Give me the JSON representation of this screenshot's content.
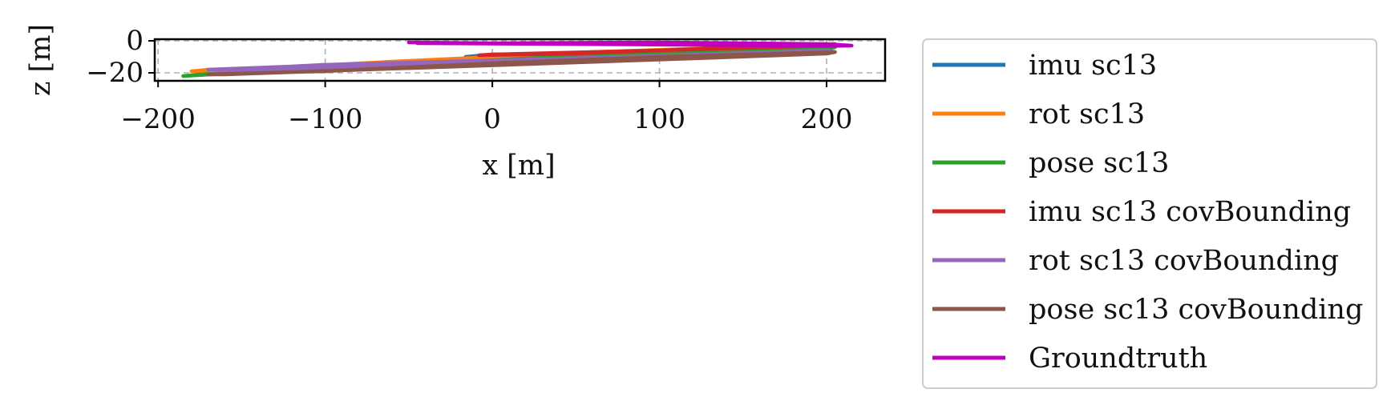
{
  "chart_data": {
    "type": "line",
    "xlabel": "x [m]",
    "ylabel": "z [m]",
    "xlim": [
      -202,
      235
    ],
    "ylim": [
      -25,
      1
    ],
    "xticks": [
      -200,
      -100,
      0,
      100,
      200
    ],
    "xtick_labels": [
      "−200",
      "−100",
      "0",
      "100",
      "200"
    ],
    "yticks": [
      0,
      -20
    ],
    "ytick_labels": [
      "0",
      "−20"
    ],
    "grid": true,
    "legend_position": "outside-right",
    "series": [
      {
        "name": "imu sc13",
        "color": "#1f77b4",
        "x": [
          -16,
          40,
          150,
          200,
          205,
          130,
          0,
          -16
        ],
        "z": [
          -10,
          -9.5,
          -6,
          -3,
          -4,
          -7,
          -8.5,
          -10
        ]
      },
      {
        "name": "rot sc13",
        "color": "#ff7f0e",
        "x": [
          -180,
          -150,
          -60,
          60,
          200,
          205,
          150,
          -170,
          -180
        ],
        "z": [
          -19,
          -18,
          -13,
          -7,
          -2,
          -3,
          -7,
          -18,
          -19
        ]
      },
      {
        "name": "pose sc13",
        "color": "#2ca02c",
        "x": [
          -185,
          -100,
          20,
          130,
          205,
          200,
          100,
          -175,
          -185
        ],
        "z": [
          -22,
          -17,
          -11,
          -6,
          -4,
          -5,
          -8,
          -21,
          -22
        ]
      },
      {
        "name": "imu sc13 covBounding",
        "color": "#d62728",
        "x": [
          -8,
          50,
          150,
          205,
          200,
          100,
          0,
          -8
        ],
        "z": [
          -9,
          -8,
          -4,
          -2,
          -3,
          -6,
          -8.5,
          -9
        ]
      },
      {
        "name": "rot sc13 covBounding",
        "color": "#9467bd",
        "x": [
          -170,
          -120,
          -102,
          -30,
          80,
          200,
          205,
          120,
          -165
        ],
        "z": [
          -18,
          -16,
          -15,
          -13,
          -10,
          -6,
          -7,
          -9,
          -19
        ]
      },
      {
        "name": "pose sc13 covBounding",
        "color": "#8c564b",
        "x": [
          -170,
          -100,
          0,
          100,
          205,
          200,
          120,
          -160,
          -170
        ],
        "z": [
          -21,
          -19,
          -14,
          -10,
          -7,
          -8,
          -11,
          -21,
          -21
        ]
      },
      {
        "name": "Groundtruth",
        "color": "#bf00bf",
        "x": [
          -50,
          0,
          100,
          200,
          215,
          205,
          120,
          -45
        ],
        "z": [
          -1,
          -1.5,
          -1,
          -2,
          -3,
          -3.2,
          -2.5,
          -1.5
        ]
      }
    ]
  }
}
